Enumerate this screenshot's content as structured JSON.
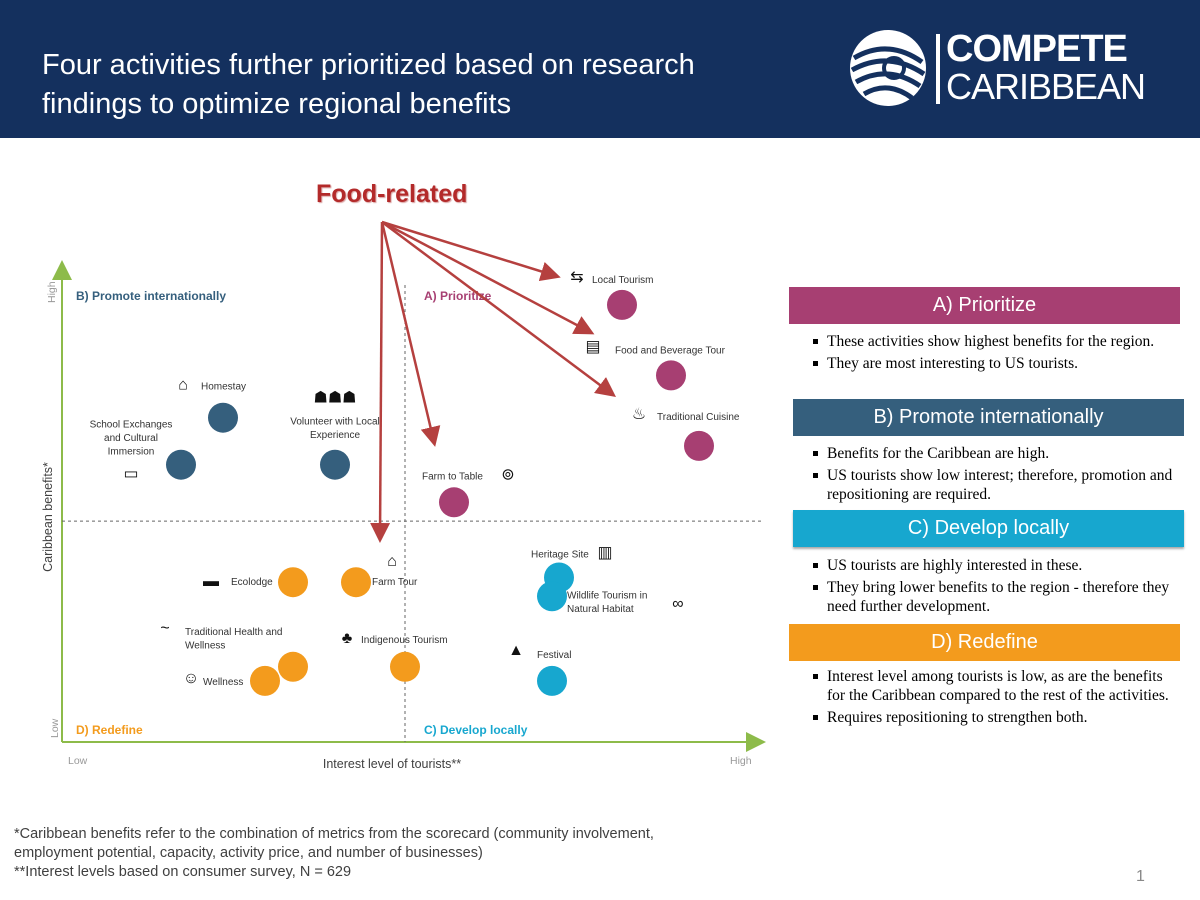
{
  "header": {
    "title": "Four activities further prioritized based on research findings to optimize regional benefits",
    "logo_line1": "COMPETE",
    "logo_line2": "CARIBBEAN",
    "bg_color": "#14305e"
  },
  "annotation": {
    "label": "Food-related",
    "color": "#b32a2a",
    "points_to": [
      "Local Tourism",
      "Food and Beverage Tour",
      "Traditional Cuisine",
      "Farm to Table",
      "Farm Tour"
    ]
  },
  "chart_data": {
    "type": "scatter",
    "xlabel": "Interest level of tourists**",
    "ylabel": "Caribbean benefits*",
    "x_low": "Low",
    "x_high": "High",
    "y_low": "Low",
    "y_high": "High",
    "xlim": [
      0,
      100
    ],
    "ylim": [
      0,
      100
    ],
    "divider_x": 49,
    "divider_y": 47,
    "quadrant_labels": {
      "top_left": "B) Promote internationally",
      "top_right": "A) Prioritize",
      "bottom_left": "D) Redefine",
      "bottom_right": "C) Develop locally"
    },
    "colors": {
      "A": "#a73f72",
      "B": "#355f7d",
      "C": "#17a7cf",
      "D": "#f39b1d"
    },
    "series": [
      {
        "group": "A",
        "points": [
          {
            "label": "Local Tourism",
            "x": 80,
            "y": 93,
            "icon": "signpost-icon"
          },
          {
            "label": "Food and Beverage Tour",
            "x": 87,
            "y": 78,
            "icon": "food-truck-icon"
          },
          {
            "label": "Traditional Cuisine",
            "x": 91,
            "y": 63,
            "icon": "cooking-pot-icon"
          },
          {
            "label": "Farm to Table",
            "x": 56,
            "y": 51,
            "icon": "plate-cutlery-icon"
          }
        ]
      },
      {
        "group": "B",
        "points": [
          {
            "label": "Homestay",
            "x": 23,
            "y": 69,
            "icon": "house-icon"
          },
          {
            "label": "School Exchanges and Cultural Immersion",
            "x": 17,
            "y": 59,
            "icon": "bus-icon"
          },
          {
            "label": "Volunteer with Local Experience",
            "x": 39,
            "y": 59,
            "icon": "people-group-icon"
          }
        ]
      },
      {
        "group": "C",
        "points": [
          {
            "label": "Heritage Site",
            "x": 71,
            "y": 35,
            "icon": "map-icon"
          },
          {
            "label": "Wildlife Tourism in Natural Habitat",
            "x": 70,
            "y": 31,
            "icon": "binoculars-icon"
          },
          {
            "label": "Festival",
            "x": 70,
            "y": 13,
            "icon": "tent-icon"
          }
        ]
      },
      {
        "group": "D",
        "points": [
          {
            "label": "Ecolodge",
            "x": 33,
            "y": 34,
            "icon": "bed-icon"
          },
          {
            "label": "Farm Tour",
            "x": 42,
            "y": 34,
            "icon": "barn-icon"
          },
          {
            "label": "Traditional Health and Wellness",
            "x": 33,
            "y": 16,
            "icon": "massage-icon"
          },
          {
            "label": "Wellness",
            "x": 29,
            "y": 13,
            "icon": "meditation-icon"
          },
          {
            "label": "Indigenous Tourism",
            "x": 49,
            "y": 16,
            "icon": "tree-icon"
          }
        ]
      }
    ]
  },
  "legend": [
    {
      "title": "A) Prioritize",
      "bullets": [
        "These activities show highest benefits for the region.",
        "They are most interesting to US tourists."
      ]
    },
    {
      "title": "B) Promote internationally",
      "bullets": [
        "Benefits for the Caribbean are high.",
        "US tourists show low interest; therefore, promotion and repositioning are required."
      ]
    },
    {
      "title": "C) Develop locally",
      "bullets": [
        "US tourists are highly interested in these.",
        "They bring lower benefits to the region - therefore they need further development."
      ]
    },
    {
      "title": "D) Redefine",
      "bullets": [
        "Interest level among tourists is low, as are the benefits for the Caribbean compared to the rest of the activities.",
        "Requires repositioning to strengthen both."
      ]
    }
  ],
  "footnotes": [
    "*Caribbean benefits refer to the combination of metrics from the scorecard (community involvement, employment potential, capacity, activity price, and number of businesses)",
    "**Interest levels based on consumer survey, N = 629"
  ],
  "page_number": "1"
}
